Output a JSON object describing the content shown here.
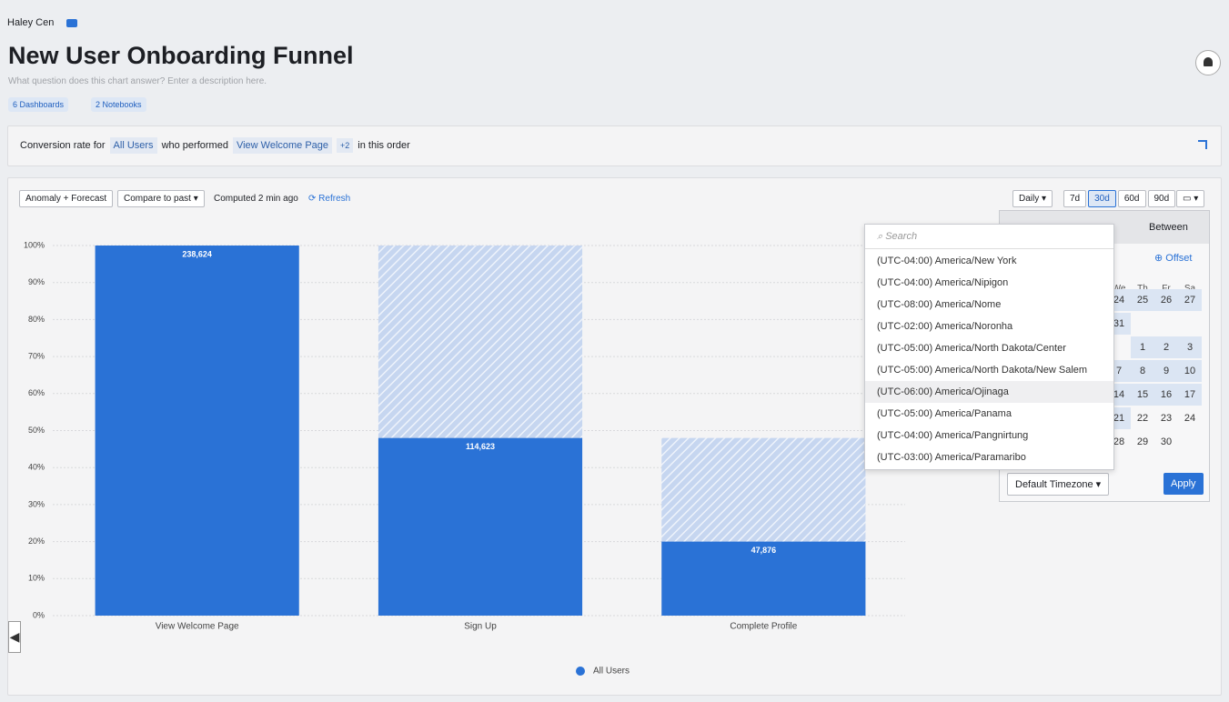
{
  "header": {
    "owner": "Haley Cen",
    "title": "New User Onboarding Funnel",
    "description_placeholder": "What question does this chart answer? Enter a description here.",
    "badges": [
      "6 Dashboards",
      "2 Notebooks"
    ]
  },
  "query": {
    "prefix": "Conversion rate for",
    "segment": "All Users",
    "verb": "who performed",
    "event": "View Welcome Page",
    "more": "+2",
    "suffix": "in this order"
  },
  "toolbar": {
    "anomaly": "Anomaly + Forecast",
    "compare": "Compare to past",
    "computed": "Computed 2 min ago",
    "refresh": "Refresh",
    "interval": "Daily",
    "ranges": [
      "7d",
      "30d",
      "60d",
      "90d"
    ]
  },
  "timezone_dropdown": {
    "search_placeholder": "Search",
    "items": [
      "(UTC-04:00) America/New York",
      "(UTC-04:00) America/Nipigon",
      "(UTC-08:00) America/Nome",
      "(UTC-02:00) America/Noronha",
      "(UTC-05:00) America/North Dakota/Center",
      "(UTC-05:00) America/North Dakota/New Salem",
      "(UTC-06:00) America/Ojinaga",
      "(UTC-05:00) America/Panama",
      "(UTC-04:00) America/Pangnirtung",
      "(UTC-03:00) America/Paramaribo"
    ]
  },
  "date_picker": {
    "tab": "Between",
    "offset": "Offset",
    "weekdays": [
      "We",
      "Th",
      "Fr",
      "Sa"
    ],
    "weeks": [
      [
        24,
        25,
        26,
        27
      ],
      [
        31
      ],
      [
        1,
        2,
        3
      ],
      [
        7,
        8,
        9,
        10
      ],
      [
        14,
        15,
        16,
        17
      ],
      [
        21,
        22,
        23,
        24
      ],
      [
        28,
        29,
        30
      ]
    ],
    "timezone_button": "Default Timezone",
    "apply": "Apply"
  },
  "chart_data": {
    "type": "bar",
    "categories": [
      "View Welcome Page",
      "Sign Up",
      "Complete Profile"
    ],
    "series": [
      {
        "name": "All Users",
        "color": "#2a72d6",
        "values": [
          100,
          48,
          20
        ]
      }
    ],
    "bar_labels": [
      "238,624",
      "114,623",
      "47,876"
    ],
    "ylim": [
      0,
      100
    ],
    "yticks": [
      {
        "value": 0,
        "label": "0%"
      },
      {
        "value": 10,
        "label": "10%"
      },
      {
        "value": 20,
        "label": "20%"
      },
      {
        "value": 30,
        "label": "30%"
      },
      {
        "value": 40,
        "label": "40%"
      },
      {
        "value": 50,
        "label": "50%"
      },
      {
        "value": 60,
        "label": "60%"
      },
      {
        "value": 70,
        "label": "70%"
      },
      {
        "value": 80,
        "label": "80%"
      },
      {
        "value": 90,
        "label": "90%"
      },
      {
        "value": 100,
        "label": "100%"
      }
    ],
    "grid": true
  }
}
